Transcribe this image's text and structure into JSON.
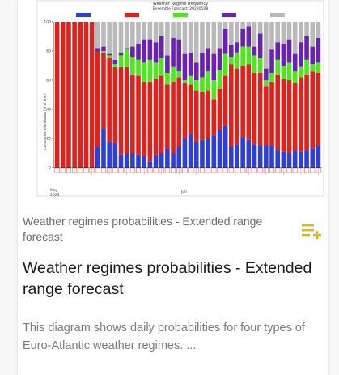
{
  "card": {
    "category": "Weather regimes probabilities - Extended range forecast",
    "title": "Weather regimes probabilities - Extended range forecast",
    "description": "This diagram shows daily probabilities for four types of Euro-Atlantic weather regimes. ...",
    "action_icon": "playlist-add-icon",
    "accent_color": "#e8b800"
  },
  "chart_data": {
    "type": "bar",
    "stacked": true,
    "title": "Weather Regime frequency",
    "subtitle": "Ensemble Forecast: 20230508",
    "ylabel": "cumulative distribution (% of ens.)",
    "ylim": [
      0,
      100
    ],
    "yticks": [
      0,
      20,
      40,
      60,
      80,
      100
    ],
    "x_footer": [
      "May",
      "2023"
    ],
    "x_month_label": "Jun",
    "legend_position": "top",
    "colors": {
      "blue": "#2d3fd6",
      "red": "#e0221c",
      "green": "#4ee61c",
      "purple": "#6a22b4",
      "gray": "#b9b9b9"
    },
    "series": [
      {
        "color": "blue",
        "values": [
          0,
          0,
          0,
          0,
          0,
          0,
          0,
          14,
          27,
          18,
          17,
          9,
          10,
          10,
          9,
          8,
          4,
          9,
          10,
          13,
          10,
          14,
          20,
          23,
          18,
          19,
          20,
          22,
          26,
          29,
          14,
          16,
          21,
          19,
          16,
          15,
          15,
          15,
          12,
          11,
          10,
          12,
          11,
          12,
          13,
          15
        ]
      },
      {
        "color": "red",
        "values": [
          100,
          100,
          100,
          100,
          100,
          100,
          100,
          66,
          52,
          57,
          52,
          60,
          59,
          54,
          54,
          51,
          55,
          52,
          53,
          44,
          49,
          48,
          38,
          34,
          35,
          33,
          33,
          25,
          28,
          34,
          57,
          52,
          49,
          52,
          49,
          50,
          41,
          44,
          52,
          50,
          50,
          46,
          51,
          52,
          53,
          50
        ]
      },
      {
        "color": "green",
        "values": [
          0,
          0,
          0,
          0,
          0,
          0,
          0,
          0,
          1,
          2,
          2,
          8,
          12,
          12,
          11,
          13,
          15,
          11,
          12,
          8,
          10,
          4,
          2,
          6,
          7,
          10,
          13,
          13,
          13,
          15,
          5,
          11,
          13,
          12,
          12,
          10,
          4,
          6,
          10,
          9,
          12,
          8,
          7,
          10,
          5,
          7
        ]
      },
      {
        "color": "purple",
        "values": [
          0,
          0,
          0,
          0,
          0,
          0,
          0,
          2,
          3,
          1,
          3,
          2,
          1,
          7,
          11,
          16,
          14,
          14,
          15,
          12,
          20,
          22,
          18,
          16,
          12,
          17,
          16,
          18,
          15,
          17,
          8,
          7,
          12,
          14,
          6,
          17,
          8,
          16,
          12,
          15,
          16,
          12,
          17,
          16,
          12,
          17
        ]
      },
      {
        "color": "gray",
        "values": [
          0,
          0,
          0,
          0,
          0,
          0,
          0,
          18,
          17,
          22,
          26,
          21,
          18,
          17,
          15,
          12,
          12,
          14,
          10,
          23,
          11,
          12,
          22,
          21,
          28,
          21,
          18,
          22,
          18,
          5,
          16,
          14,
          5,
          3,
          17,
          8,
          32,
          19,
          14,
          15,
          12,
          22,
          14,
          10,
          17,
          11
        ]
      }
    ],
    "categories": [
      "1",
      "2",
      "3",
      "4",
      "5",
      "6",
      "7",
      "8",
      "9",
      "10",
      "11",
      "12",
      "13",
      "14",
      "15",
      "16",
      "17",
      "18",
      "19",
      "20",
      "21",
      "22",
      "23",
      "24",
      "25",
      "26",
      "27",
      "28",
      "29",
      "30",
      "31",
      "32",
      "33",
      "34",
      "35",
      "36",
      "37",
      "38",
      "39",
      "40",
      "41",
      "42",
      "43",
      "44",
      "45",
      "46"
    ]
  }
}
